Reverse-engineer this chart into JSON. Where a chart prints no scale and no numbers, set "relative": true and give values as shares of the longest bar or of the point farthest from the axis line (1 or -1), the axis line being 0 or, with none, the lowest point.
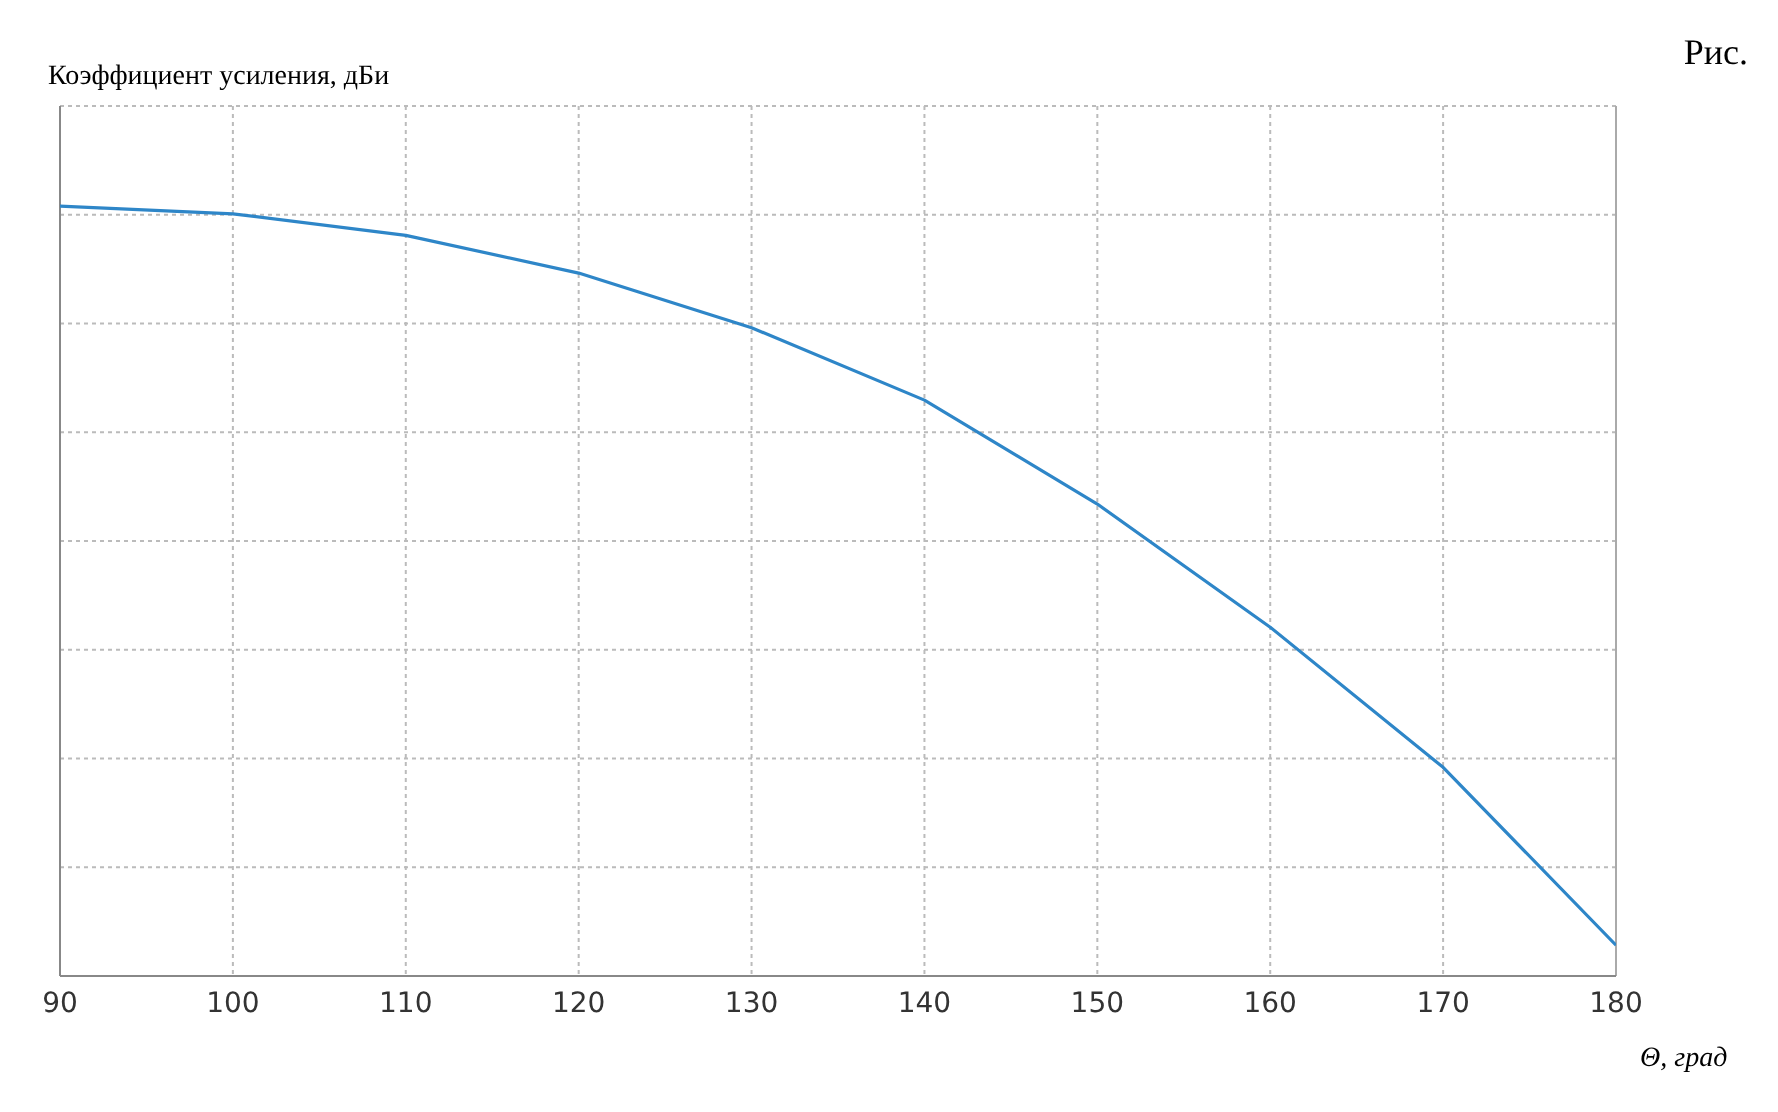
{
  "chart_data": {
    "type": "line",
    "ylabel": "Коэффициент усиления, дБи",
    "xlabel": "Θ, град",
    "annotations": [
      "Рис."
    ],
    "relative": true,
    "x": [
      90,
      100,
      110,
      120,
      130,
      140,
      150,
      160,
      170,
      180
    ],
    "series": [
      {
        "color": "#2e86c8",
        "values": [
          1,
          0.99,
          0.962,
          0.913,
          0.842,
          0.748,
          0.613,
          0.453,
          0.271,
          0.04
        ]
      }
    ],
    "xlim": [
      90,
      180
    ],
    "xticks": [
      90,
      100,
      110,
      120,
      130,
      140,
      150,
      160,
      170,
      180
    ],
    "grid": true,
    "marker": "none",
    "line_style": "solid"
  }
}
